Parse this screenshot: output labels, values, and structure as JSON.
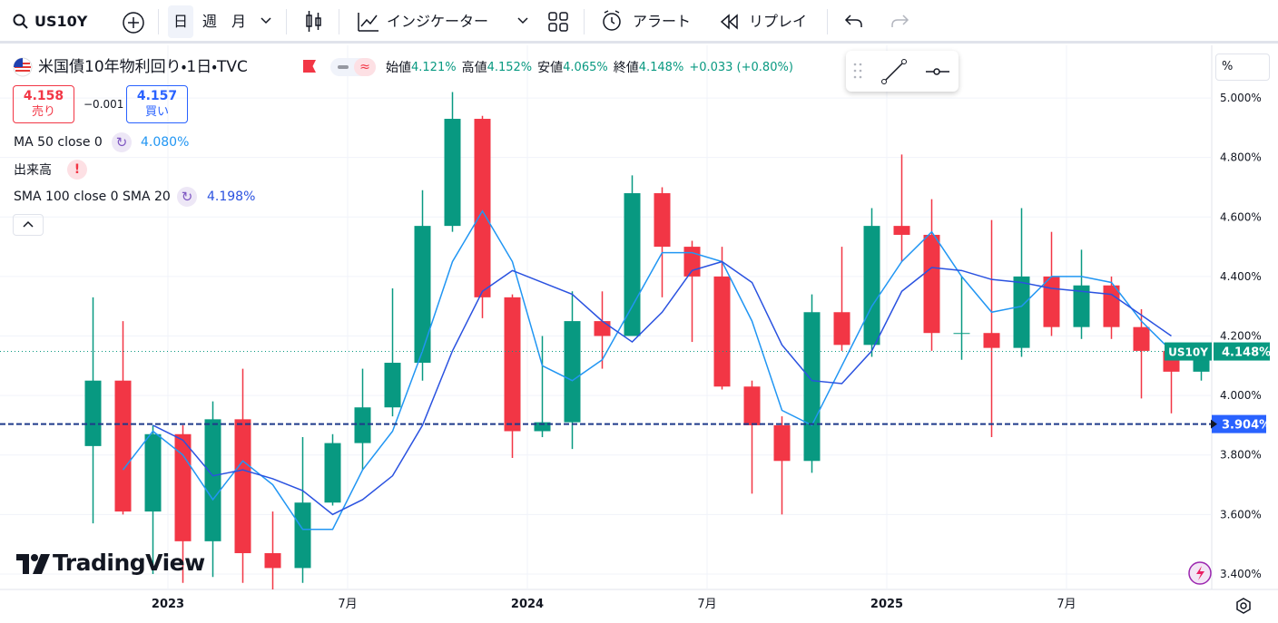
{
  "toolbar": {
    "symbol": "US10Y",
    "intervals": [
      "日",
      "週",
      "月"
    ],
    "indicators": "インジケーター",
    "alert": "アラート",
    "replay": "リプレイ"
  },
  "legend": {
    "title": "米国債10年物利回り・1日・TVC",
    "ohlc": [
      {
        "name": "始値",
        "value": "4.121%"
      },
      {
        "name": "高値",
        "value": "4.152%"
      },
      {
        "name": "安値",
        "value": "4.065%"
      },
      {
        "name": "終値",
        "value": "4.148%"
      }
    ],
    "change": "+0.033 (+0.80%)",
    "sell": {
      "price": "4.158",
      "label": "売り"
    },
    "spread": "−0.001",
    "buy": {
      "price": "4.157",
      "label": "買い"
    },
    "indicators": [
      {
        "name": "MA 50 close 0",
        "value": "4.080%"
      },
      {
        "name": "出来高"
      },
      {
        "name": "SMA 100 close 0 SMA 20",
        "value": "4.198%"
      }
    ]
  },
  "scale_button": "%",
  "watermark": "TradingView",
  "chart_data": {
    "type": "candlestick",
    "categories": [
      null,
      null,
      null,
      "2023",
      null,
      null,
      null,
      null,
      null,
      "7月",
      null,
      null,
      null,
      null,
      null,
      "2024",
      null,
      null,
      null,
      null,
      null,
      "7月",
      null,
      null,
      null,
      null,
      null,
      "2025",
      null,
      null,
      null,
      null,
      null,
      "7月",
      null,
      null,
      null,
      null
    ],
    "open": [
      3.83,
      4.05,
      3.61,
      3.87,
      3.51,
      3.92,
      3.47,
      3.42,
      3.64,
      3.84,
      3.96,
      4.11,
      4.57,
      4.93,
      4.33,
      3.88,
      3.91,
      4.25,
      4.2,
      4.68,
      4.5,
      4.4,
      4.03,
      3.9,
      3.78,
      4.28,
      4.17,
      4.57,
      4.54,
      4.21,
      4.21,
      4.16,
      4.4,
      4.23,
      4.37,
      4.23,
      4.15,
      4.08
    ],
    "high": [
      4.33,
      4.25,
      3.9,
      3.9,
      3.98,
      4.09,
      3.61,
      3.86,
      3.87,
      4.09,
      4.36,
      4.69,
      5.02,
      4.94,
      4.34,
      4.2,
      4.35,
      4.35,
      4.74,
      4.7,
      4.52,
      4.5,
      4.05,
      3.93,
      4.34,
      4.5,
      4.63,
      4.81,
      4.66,
      4.4,
      4.59,
      4.63,
      4.55,
      4.49,
      4.4,
      4.29,
      4.17,
      4.17
    ],
    "low": [
      3.57,
      3.6,
      3.4,
      3.37,
      3.39,
      3.37,
      3.29,
      3.37,
      3.63,
      3.75,
      3.93,
      4.05,
      4.55,
      4.26,
      3.79,
      3.86,
      3.82,
      4.09,
      4.2,
      4.33,
      4.18,
      4.02,
      3.67,
      3.6,
      3.74,
      4.15,
      4.13,
      4.45,
      4.15,
      4.12,
      3.86,
      4.13,
      4.2,
      4.19,
      4.19,
      3.99,
      3.94,
      4.05
    ],
    "close": [
      4.05,
      3.61,
      3.87,
      3.51,
      3.92,
      3.47,
      3.42,
      3.64,
      3.84,
      3.96,
      4.11,
      4.57,
      4.93,
      4.33,
      3.88,
      3.91,
      4.25,
      4.2,
      4.68,
      4.5,
      4.4,
      4.03,
      3.9,
      3.78,
      4.28,
      4.17,
      4.57,
      4.54,
      4.21,
      4.21,
      4.16,
      4.4,
      4.23,
      4.37,
      4.23,
      4.15,
      4.08,
      4.15
    ],
    "up_color": "#089981",
    "down_color": "#f23645",
    "series": [
      {
        "name": "MA 50 close 0",
        "color": "#2196f3",
        "values": [
          null,
          3.75,
          3.88,
          3.8,
          3.65,
          3.78,
          3.7,
          3.55,
          3.55,
          3.75,
          3.88,
          4.15,
          4.45,
          4.62,
          4.45,
          4.1,
          4.05,
          4.12,
          4.3,
          4.48,
          4.48,
          4.45,
          4.25,
          3.95,
          3.9,
          4.1,
          4.3,
          4.45,
          4.55,
          4.4,
          4.28,
          4.3,
          4.4,
          4.4,
          4.38,
          4.25,
          4.15,
          null
        ]
      },
      {
        "name": "SMA 100 close 0 SMA 20",
        "color": "#2a52e0",
        "values": [
          null,
          null,
          3.9,
          3.85,
          3.73,
          3.75,
          3.72,
          3.68,
          3.6,
          3.65,
          3.73,
          3.9,
          4.15,
          4.35,
          4.42,
          4.38,
          4.34,
          4.25,
          4.18,
          4.28,
          4.42,
          4.45,
          4.38,
          4.17,
          4.05,
          4.04,
          4.15,
          4.35,
          4.43,
          4.42,
          4.39,
          4.38,
          4.36,
          4.35,
          4.34,
          4.27,
          4.2,
          null
        ]
      }
    ],
    "ylim": [
      3.348,
      5.177
    ],
    "yticks": [
      {
        "value": 3.4,
        "label": "3.400%"
      },
      {
        "value": 3.6,
        "label": "3.600%"
      },
      {
        "value": 3.8,
        "label": "3.800%"
      },
      {
        "value": 4.0,
        "label": "4.000%"
      },
      {
        "value": 4.2,
        "label": "4.200%"
      },
      {
        "value": 4.4,
        "label": "4.400%"
      },
      {
        "value": 4.6,
        "label": "4.600%"
      },
      {
        "value": 4.8,
        "label": "4.800%"
      },
      {
        "value": 5.0,
        "label": "5.000%"
      }
    ],
    "grid": true,
    "price_line": {
      "value": 4.148,
      "label": "4.148%",
      "symbol": "US10Y",
      "color": "#089981"
    },
    "horizontal_line": {
      "value": 3.904,
      "label": "3.904%",
      "color": "#1e3a8a"
    }
  }
}
